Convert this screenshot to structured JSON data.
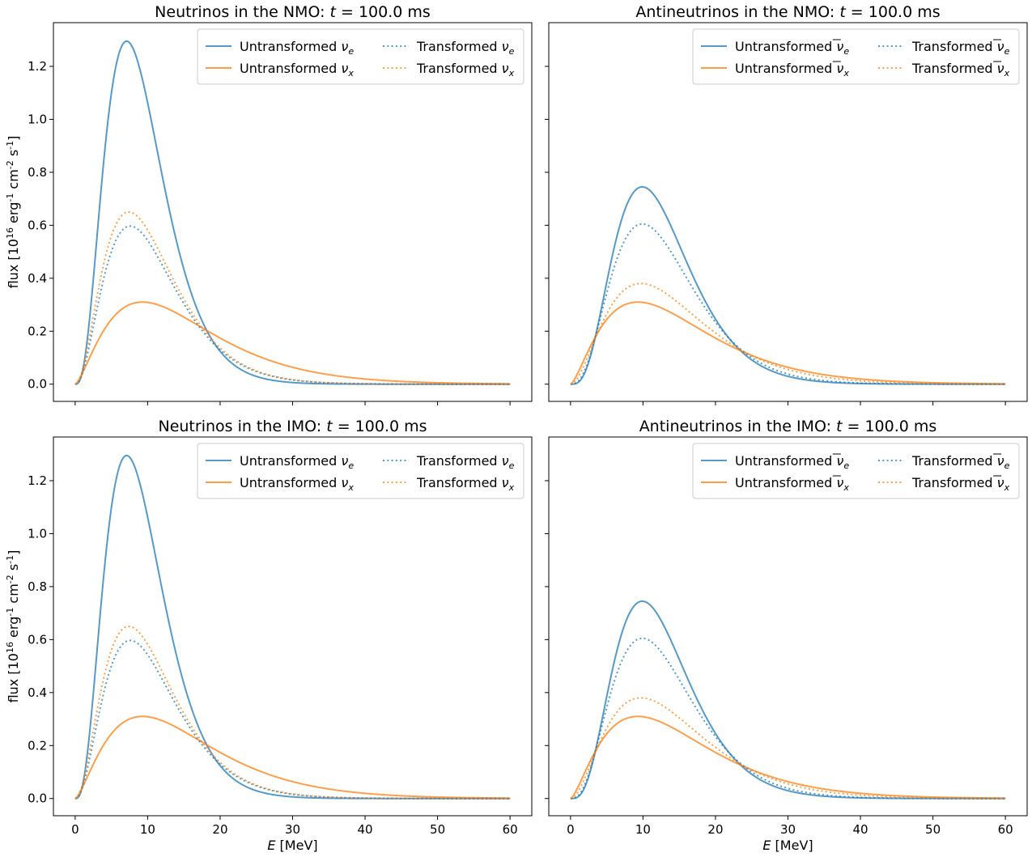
{
  "chart_data": [
    {
      "type": "line",
      "title": "Neutrinos in the NMO: t = 100.0 ms",
      "title_parts": {
        "prefix": "Neutrinos in the NMO: ",
        "var": "t",
        "suffix": " = 100.0 ms"
      },
      "xlabel": "",
      "ylabel": "flux [10^16 erg^-1 cm^-2 s^-1]",
      "xlim": [
        -3,
        63
      ],
      "ylim": [
        -0.065,
        1.365
      ],
      "x_ticks": [
        0,
        10,
        20,
        30,
        40,
        50,
        60
      ],
      "y_ticks": [
        0.0,
        0.2,
        0.4,
        0.6,
        0.8,
        1.0,
        1.2
      ],
      "show_x_tick_labels": false,
      "show_y_tick_labels": true,
      "legend_position": "upper-right",
      "legend_columns": 2,
      "legend": [
        {
          "prefix": "Untransformed ",
          "sym": "ν",
          "bar": false,
          "sub": "e",
          "color": "#1f77b4",
          "style": "solid"
        },
        {
          "prefix": "Untransformed ",
          "sym": "ν",
          "bar": false,
          "sub": "x",
          "color": "#ff7f0e",
          "style": "solid"
        },
        {
          "prefix": "Transformed ",
          "sym": "ν",
          "bar": false,
          "sub": "e",
          "color": "#1f77b4",
          "style": "dotted"
        },
        {
          "prefix": "Transformed ",
          "sym": "ν",
          "bar": false,
          "sub": "x",
          "color": "#ff7f0e",
          "style": "dotted"
        }
      ],
      "series": [
        {
          "legend_index": 0,
          "peak_x": 7.1,
          "peak_y": 1.295,
          "shape": 3.0
        },
        {
          "legend_index": 1,
          "peak_x": 9.3,
          "peak_y": 0.31,
          "shape": 1.5
        },
        {
          "legend_index": 2,
          "peak_x": 7.6,
          "peak_y": 0.597,
          "shape": 2.3
        },
        {
          "legend_index": 3,
          "peak_x": 7.4,
          "peak_y": 0.65,
          "shape": 2.2
        }
      ]
    },
    {
      "type": "line",
      "title": "Antineutrinos in the NMO: t = 100.0 ms",
      "title_parts": {
        "prefix": "Antineutrinos in the NMO: ",
        "var": "t",
        "suffix": " = 100.0 ms"
      },
      "xlabel": "",
      "ylabel": "",
      "xlim": [
        -3,
        63
      ],
      "ylim": [
        -0.065,
        1.365
      ],
      "x_ticks": [
        0,
        10,
        20,
        30,
        40,
        50,
        60
      ],
      "y_ticks": [
        0.0,
        0.2,
        0.4,
        0.6,
        0.8,
        1.0,
        1.2
      ],
      "show_x_tick_labels": false,
      "show_y_tick_labels": false,
      "legend_position": "upper-right",
      "legend_columns": 2,
      "legend": [
        {
          "prefix": "Untransformed ",
          "sym": "ν",
          "bar": true,
          "sub": "e",
          "color": "#1f77b4",
          "style": "solid"
        },
        {
          "prefix": "Untransformed ",
          "sym": "ν",
          "bar": true,
          "sub": "x",
          "color": "#ff7f0e",
          "style": "solid"
        },
        {
          "prefix": "Transformed ",
          "sym": "ν",
          "bar": true,
          "sub": "e",
          "color": "#1f77b4",
          "style": "dotted"
        },
        {
          "prefix": "Transformed ",
          "sym": "ν",
          "bar": true,
          "sub": "x",
          "color": "#ff7f0e",
          "style": "dotted"
        }
      ],
      "series": [
        {
          "legend_index": 0,
          "peak_x": 9.9,
          "peak_y": 0.745,
          "shape": 3.5
        },
        {
          "legend_index": 1,
          "peak_x": 9.3,
          "peak_y": 0.31,
          "shape": 1.5
        },
        {
          "legend_index": 2,
          "peak_x": 9.9,
          "peak_y": 0.605,
          "shape": 3.0
        },
        {
          "legend_index": 3,
          "peak_x": 9.7,
          "peak_y": 0.38,
          "shape": 2.0
        }
      ]
    },
    {
      "type": "line",
      "title": "Neutrinos in the IMO: t = 100.0 ms",
      "title_parts": {
        "prefix": "Neutrinos in the IMO: ",
        "var": "t",
        "suffix": " = 100.0 ms"
      },
      "xlabel": "E [MeV]",
      "ylabel": "flux [10^16 erg^-1 cm^-2 s^-1]",
      "xlim": [
        -3,
        63
      ],
      "ylim": [
        -0.065,
        1.365
      ],
      "x_ticks": [
        0,
        10,
        20,
        30,
        40,
        50,
        60
      ],
      "y_ticks": [
        0.0,
        0.2,
        0.4,
        0.6,
        0.8,
        1.0,
        1.2
      ],
      "show_x_tick_labels": true,
      "show_y_tick_labels": true,
      "legend_position": "upper-right",
      "legend_columns": 2,
      "legend": [
        {
          "prefix": "Untransformed ",
          "sym": "ν",
          "bar": false,
          "sub": "e",
          "color": "#1f77b4",
          "style": "solid"
        },
        {
          "prefix": "Untransformed ",
          "sym": "ν",
          "bar": false,
          "sub": "x",
          "color": "#ff7f0e",
          "style": "solid"
        },
        {
          "prefix": "Transformed ",
          "sym": "ν",
          "bar": false,
          "sub": "e",
          "color": "#1f77b4",
          "style": "dotted"
        },
        {
          "prefix": "Transformed ",
          "sym": "ν",
          "bar": false,
          "sub": "x",
          "color": "#ff7f0e",
          "style": "dotted"
        }
      ],
      "series": [
        {
          "legend_index": 0,
          "peak_x": 7.1,
          "peak_y": 1.295,
          "shape": 3.0
        },
        {
          "legend_index": 1,
          "peak_x": 9.3,
          "peak_y": 0.31,
          "shape": 1.5
        },
        {
          "legend_index": 2,
          "peak_x": 7.6,
          "peak_y": 0.597,
          "shape": 2.3
        },
        {
          "legend_index": 3,
          "peak_x": 7.4,
          "peak_y": 0.65,
          "shape": 2.2
        }
      ]
    },
    {
      "type": "line",
      "title": "Antineutrinos in the IMO: t = 100.0 ms",
      "title_parts": {
        "prefix": "Antineutrinos in the IMO: ",
        "var": "t",
        "suffix": " = 100.0 ms"
      },
      "xlabel": "E [MeV]",
      "ylabel": "",
      "xlim": [
        -3,
        63
      ],
      "ylim": [
        -0.065,
        1.365
      ],
      "x_ticks": [
        0,
        10,
        20,
        30,
        40,
        50,
        60
      ],
      "y_ticks": [
        0.0,
        0.2,
        0.4,
        0.6,
        0.8,
        1.0,
        1.2
      ],
      "show_x_tick_labels": true,
      "show_y_tick_labels": false,
      "legend_position": "upper-right",
      "legend_columns": 2,
      "legend": [
        {
          "prefix": "Untransformed ",
          "sym": "ν",
          "bar": true,
          "sub": "e",
          "color": "#1f77b4",
          "style": "solid"
        },
        {
          "prefix": "Untransformed ",
          "sym": "ν",
          "bar": true,
          "sub": "x",
          "color": "#ff7f0e",
          "style": "solid"
        },
        {
          "prefix": "Transformed ",
          "sym": "ν",
          "bar": true,
          "sub": "e",
          "color": "#1f77b4",
          "style": "dotted"
        },
        {
          "prefix": "Transformed ",
          "sym": "ν",
          "bar": true,
          "sub": "x",
          "color": "#ff7f0e",
          "style": "dotted"
        }
      ],
      "series": [
        {
          "legend_index": 0,
          "peak_x": 9.9,
          "peak_y": 0.745,
          "shape": 3.5
        },
        {
          "legend_index": 1,
          "peak_x": 9.3,
          "peak_y": 0.31,
          "shape": 1.5
        },
        {
          "legend_index": 2,
          "peak_x": 9.9,
          "peak_y": 0.605,
          "shape": 3.0
        },
        {
          "legend_index": 3,
          "peak_x": 9.7,
          "peak_y": 0.38,
          "shape": 2.0
        }
      ]
    }
  ]
}
